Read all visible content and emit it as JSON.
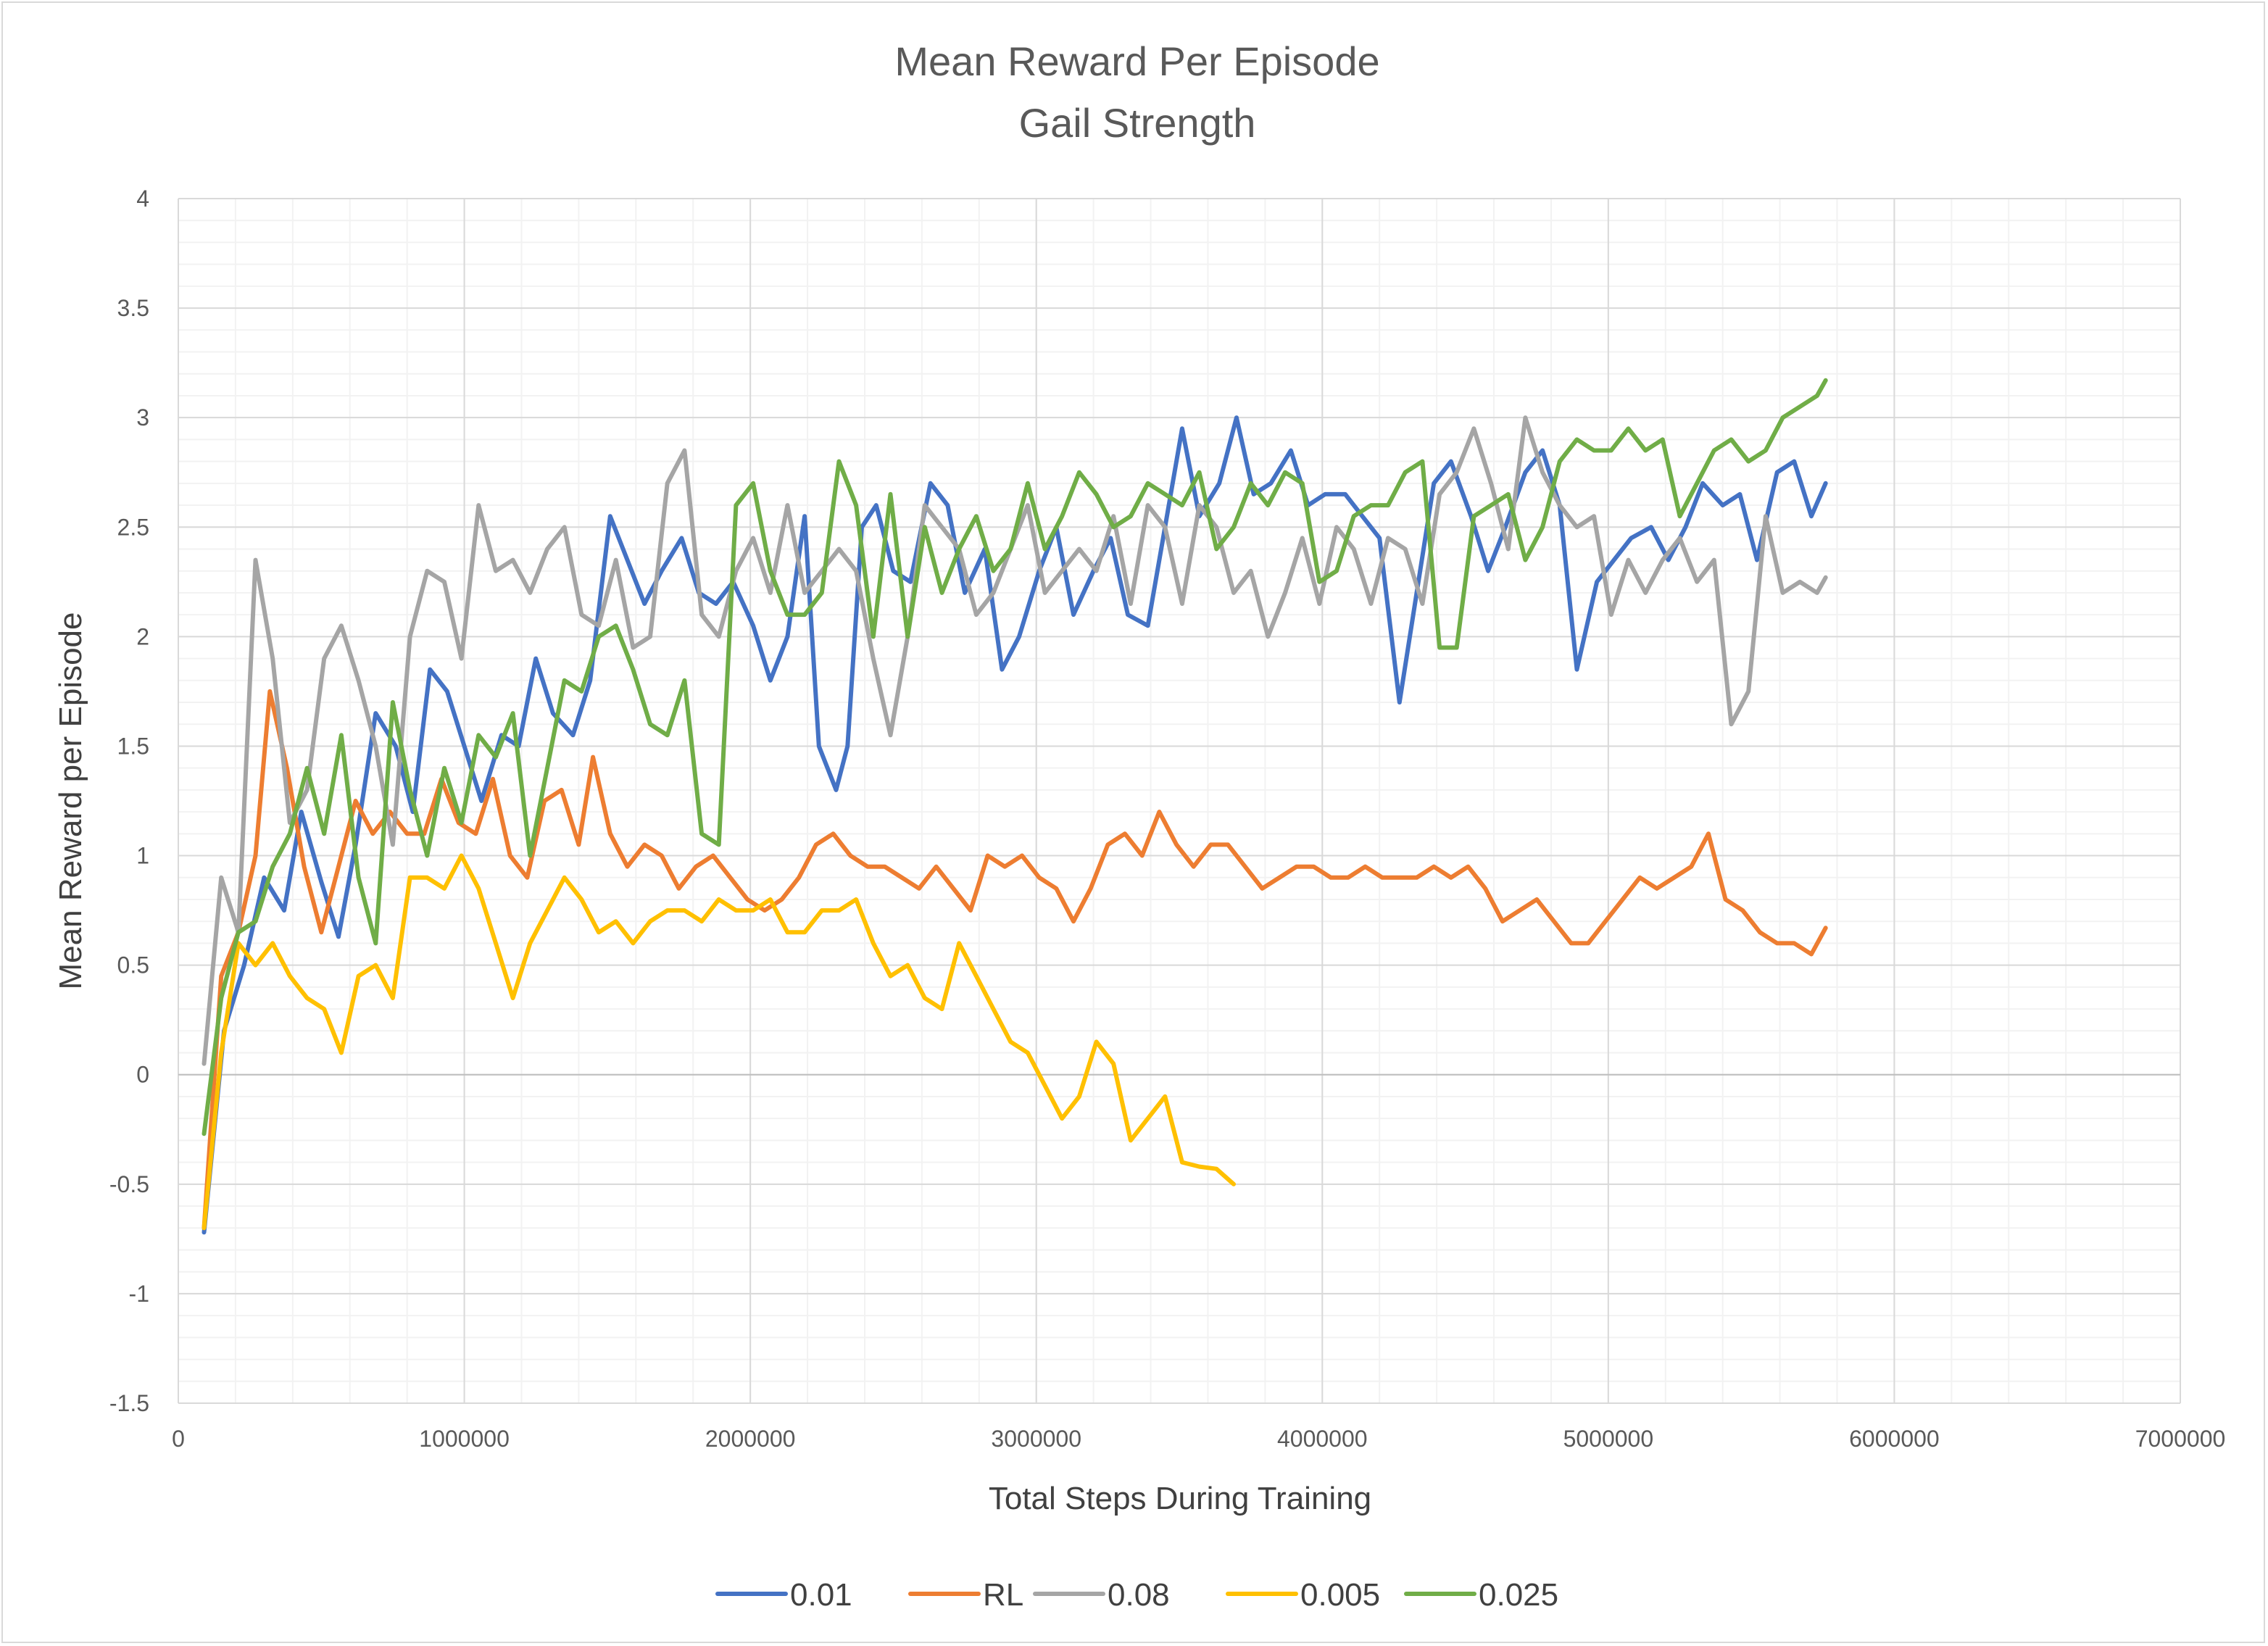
{
  "chart_data": {
    "type": "line",
    "title": "Mean Reward Per Episode",
    "subtitle": "Gail Strength",
    "xlabel": "Total Steps During Training",
    "ylabel": "Mean Reward per Episode",
    "xlim": [
      0,
      7000000
    ],
    "ylim": [
      -1.5,
      4
    ],
    "x_ticks": [
      "0",
      "1000000",
      "2000000",
      "3000000",
      "4000000",
      "5000000",
      "6000000",
      "7000000"
    ],
    "y_ticks": [
      "4",
      "3.5",
      "3",
      "2.5",
      "2",
      "1.5",
      "1",
      "0.5",
      "0",
      "-0.5",
      "-1",
      "-1.5"
    ],
    "grid": true,
    "legend_position": "bottom",
    "series": [
      {
        "name": "0.01",
        "color": "#4472c4",
        "x": [
          90000,
          160000,
          230000,
          300000,
          370000,
          430000,
          500000,
          560000,
          620000,
          690000,
          760000,
          820000,
          880000,
          940000,
          1000000,
          1060000,
          1130000,
          1190000,
          1250000,
          1310000,
          1380000,
          1440000,
          1510000,
          1570000,
          1630000,
          1690000,
          1760000,
          1820000,
          1880000,
          1940000,
          2010000,
          2070000,
          2130000,
          2190000,
          2240000,
          2300000,
          2340000,
          2390000,
          2440000,
          2500000,
          2560000,
          2630000,
          2690000,
          2750000,
          2820000,
          2880000,
          2940000,
          3010000,
          3070000,
          3130000,
          3200000,
          3260000,
          3320000,
          3390000,
          3450000,
          3510000,
          3570000,
          3640000,
          3700000,
          3760000,
          3820000,
          3890000,
          3950000,
          4010000,
          4080000,
          4140000,
          4200000,
          4270000,
          4330000,
          4390000,
          4450000,
          4520000,
          4580000,
          4640000,
          4710000,
          4770000,
          4830000,
          4890000,
          4960000,
          5020000,
          5080000,
          5150000,
          5210000,
          5270000,
          5330000,
          5400000,
          5460000,
          5520000,
          5590000,
          5650000,
          5710000,
          5760000
        ],
        "values": [
          -0.72,
          0.2,
          0.5,
          0.9,
          0.75,
          1.2,
          0.88,
          0.63,
          1.05,
          1.65,
          1.5,
          1.2,
          1.85,
          1.75,
          1.5,
          1.25,
          1.55,
          1.5,
          1.9,
          1.65,
          1.55,
          1.8,
          2.55,
          2.35,
          2.15,
          2.3,
          2.45,
          2.2,
          2.15,
          2.25,
          2.05,
          1.8,
          2.0,
          2.55,
          1.5,
          1.3,
          1.5,
          2.5,
          2.6,
          2.3,
          2.25,
          2.7,
          2.6,
          2.2,
          2.4,
          1.85,
          2.0,
          2.3,
          2.5,
          2.1,
          2.3,
          2.45,
          2.1,
          2.05,
          2.5,
          2.95,
          2.55,
          2.7,
          3.0,
          2.65,
          2.7,
          2.85,
          2.6,
          2.65,
          2.65,
          2.55,
          2.45,
          1.7,
          2.2,
          2.7,
          2.8,
          2.55,
          2.3,
          2.5,
          2.75,
          2.85,
          2.6,
          1.85,
          2.25,
          2.35,
          2.45,
          2.5,
          2.35,
          2.5,
          2.7,
          2.6,
          2.65,
          2.35,
          2.75,
          2.8,
          2.55,
          2.7
        ]
      },
      {
        "name": "RL",
        "color": "#ed7d31",
        "x": [
          90000,
          150000,
          210000,
          270000,
          320000,
          380000,
          440000,
          500000,
          560000,
          620000,
          680000,
          740000,
          800000,
          860000,
          920000,
          980000,
          1040000,
          1100000,
          1160000,
          1220000,
          1280000,
          1340000,
          1400000,
          1450000,
          1510000,
          1570000,
          1630000,
          1690000,
          1750000,
          1810000,
          1870000,
          1930000,
          1990000,
          2050000,
          2110000,
          2170000,
          2230000,
          2290000,
          2350000,
          2410000,
          2470000,
          2530000,
          2590000,
          2650000,
          2710000,
          2770000,
          2830000,
          2890000,
          2950000,
          3010000,
          3070000,
          3130000,
          3190000,
          3250000,
          3310000,
          3370000,
          3430000,
          3490000,
          3550000,
          3610000,
          3670000,
          3730000,
          3790000,
          3850000,
          3910000,
          3970000,
          4030000,
          4090000,
          4150000,
          4210000,
          4270000,
          4330000,
          4390000,
          4450000,
          4510000,
          4570000,
          4630000,
          4690000,
          4750000,
          4810000,
          4870000,
          4930000,
          4990000,
          5050000,
          5110000,
          5170000,
          5230000,
          5290000,
          5350000,
          5410000,
          5470000,
          5530000,
          5590000,
          5650000,
          5710000,
          5760000
        ],
        "values": [
          -0.7,
          0.45,
          0.65,
          1.0,
          1.75,
          1.4,
          0.95,
          0.65,
          0.95,
          1.25,
          1.1,
          1.2,
          1.1,
          1.1,
          1.35,
          1.15,
          1.1,
          1.35,
          1.0,
          0.9,
          1.25,
          1.3,
          1.05,
          1.45,
          1.1,
          0.95,
          1.05,
          1.0,
          0.85,
          0.95,
          1.0,
          0.9,
          0.8,
          0.75,
          0.8,
          0.9,
          1.05,
          1.1,
          1.0,
          0.95,
          0.95,
          0.9,
          0.85,
          0.95,
          0.85,
          0.75,
          1.0,
          0.95,
          1.0,
          0.9,
          0.85,
          0.7,
          0.85,
          1.05,
          1.1,
          1.0,
          1.2,
          1.05,
          0.95,
          1.05,
          1.05,
          0.95,
          0.85,
          0.9,
          0.95,
          0.95,
          0.9,
          0.9,
          0.95,
          0.9,
          0.9,
          0.9,
          0.95,
          0.9,
          0.95,
          0.85,
          0.7,
          0.75,
          0.8,
          0.7,
          0.6,
          0.6,
          0.7,
          0.8,
          0.9,
          0.85,
          0.9,
          0.95,
          1.1,
          0.8,
          0.75,
          0.65,
          0.6,
          0.6,
          0.55,
          0.67
        ]
      },
      {
        "name": "0.08",
        "color": "#a5a5a5",
        "x": [
          90000,
          150000,
          210000,
          270000,
          330000,
          390000,
          450000,
          510000,
          570000,
          630000,
          690000,
          750000,
          810000,
          870000,
          930000,
          990000,
          1050000,
          1110000,
          1170000,
          1230000,
          1290000,
          1350000,
          1410000,
          1470000,
          1530000,
          1590000,
          1650000,
          1710000,
          1770000,
          1830000,
          1890000,
          1950000,
          2010000,
          2070000,
          2130000,
          2190000,
          2250000,
          2310000,
          2370000,
          2430000,
          2490000,
          2550000,
          2610000,
          2670000,
          2730000,
          2790000,
          2850000,
          2910000,
          2970000,
          3030000,
          3090000,
          3150000,
          3210000,
          3270000,
          3330000,
          3390000,
          3450000,
          3510000,
          3570000,
          3630000,
          3690000,
          3750000,
          3810000,
          3870000,
          3930000,
          3990000,
          4050000,
          4110000,
          4170000,
          4230000,
          4290000,
          4350000,
          4410000,
          4470000,
          4530000,
          4590000,
          4650000,
          4710000,
          4770000,
          4830000,
          4890000,
          4950000,
          5010000,
          5070000,
          5130000,
          5190000,
          5250000,
          5310000,
          5370000,
          5430000,
          5490000,
          5550000,
          5610000,
          5670000,
          5730000,
          5760000
        ],
        "values": [
          0.05,
          0.9,
          0.65,
          2.35,
          1.9,
          1.15,
          1.3,
          1.9,
          2.05,
          1.8,
          1.5,
          1.05,
          2.0,
          2.3,
          2.25,
          1.9,
          2.6,
          2.3,
          2.35,
          2.2,
          2.4,
          2.5,
          2.1,
          2.05,
          2.35,
          1.95,
          2.0,
          2.7,
          2.85,
          2.1,
          2.0,
          2.3,
          2.45,
          2.2,
          2.6,
          2.2,
          2.3,
          2.4,
          2.3,
          1.9,
          1.55,
          2.0,
          2.6,
          2.5,
          2.4,
          2.1,
          2.2,
          2.4,
          2.6,
          2.2,
          2.3,
          2.4,
          2.3,
          2.55,
          2.15,
          2.6,
          2.5,
          2.15,
          2.6,
          2.5,
          2.2,
          2.3,
          2.0,
          2.2,
          2.45,
          2.15,
          2.5,
          2.4,
          2.15,
          2.45,
          2.4,
          2.15,
          2.65,
          2.75,
          2.95,
          2.7,
          2.4,
          3.0,
          2.75,
          2.6,
          2.5,
          2.55,
          2.1,
          2.35,
          2.2,
          2.35,
          2.45,
          2.25,
          2.35,
          1.6,
          1.75,
          2.55,
          2.2,
          2.25,
          2.2,
          2.27
        ]
      },
      {
        "name": "0.005",
        "color": "#ffc000",
        "x": [
          90000,
          150000,
          210000,
          270000,
          330000,
          390000,
          450000,
          510000,
          570000,
          630000,
          690000,
          750000,
          810000,
          870000,
          930000,
          990000,
          1050000,
          1110000,
          1170000,
          1230000,
          1290000,
          1350000,
          1410000,
          1470000,
          1530000,
          1590000,
          1650000,
          1710000,
          1770000,
          1830000,
          1890000,
          1950000,
          2010000,
          2070000,
          2130000,
          2190000,
          2250000,
          2310000,
          2370000,
          2430000,
          2490000,
          2550000,
          2610000,
          2670000,
          2730000,
          2790000,
          2850000,
          2910000,
          2970000,
          3030000,
          3090000,
          3150000,
          3210000,
          3270000,
          3330000,
          3390000,
          3450000,
          3510000,
          3570000,
          3630000,
          3690000
        ],
        "values": [
          -0.7,
          0.1,
          0.6,
          0.5,
          0.6,
          0.45,
          0.35,
          0.3,
          0.1,
          0.45,
          0.5,
          0.35,
          0.9,
          0.9,
          0.85,
          1.0,
          0.85,
          0.6,
          0.35,
          0.6,
          0.75,
          0.9,
          0.8,
          0.65,
          0.7,
          0.6,
          0.7,
          0.75,
          0.75,
          0.7,
          0.8,
          0.75,
          0.75,
          0.8,
          0.65,
          0.65,
          0.75,
          0.75,
          0.8,
          0.6,
          0.45,
          0.5,
          0.35,
          0.3,
          0.6,
          0.45,
          0.3,
          0.15,
          0.1,
          -0.05,
          -0.2,
          -0.1,
          0.15,
          0.05,
          -0.3,
          -0.2,
          -0.1,
          -0.4,
          -0.42,
          -0.43,
          -0.5
        ]
      },
      {
        "name": "0.025",
        "color": "#70ad47",
        "x": [
          90000,
          150000,
          210000,
          270000,
          330000,
          390000,
          450000,
          510000,
          570000,
          630000,
          690000,
          750000,
          810000,
          870000,
          930000,
          990000,
          1050000,
          1110000,
          1170000,
          1230000,
          1290000,
          1350000,
          1410000,
          1470000,
          1530000,
          1590000,
          1650000,
          1710000,
          1770000,
          1830000,
          1890000,
          1950000,
          2010000,
          2070000,
          2130000,
          2190000,
          2250000,
          2310000,
          2370000,
          2430000,
          2490000,
          2550000,
          2610000,
          2670000,
          2730000,
          2790000,
          2850000,
          2910000,
          2970000,
          3030000,
          3090000,
          3150000,
          3210000,
          3270000,
          3330000,
          3390000,
          3450000,
          3510000,
          3570000,
          3630000,
          3690000,
          3750000,
          3810000,
          3870000,
          3930000,
          3990000,
          4050000,
          4110000,
          4170000,
          4230000,
          4290000,
          4350000,
          4410000,
          4470000,
          4530000,
          4590000,
          4650000,
          4710000,
          4770000,
          4830000,
          4890000,
          4950000,
          5010000,
          5070000,
          5130000,
          5190000,
          5250000,
          5310000,
          5370000,
          5430000,
          5490000,
          5550000,
          5610000,
          5670000,
          5730000,
          5760000
        ],
        "values": [
          -0.27,
          0.35,
          0.65,
          0.7,
          0.95,
          1.1,
          1.4,
          1.1,
          1.55,
          0.9,
          0.6,
          1.7,
          1.3,
          1.0,
          1.4,
          1.15,
          1.55,
          1.45,
          1.65,
          1.0,
          1.4,
          1.8,
          1.75,
          2.0,
          2.05,
          1.85,
          1.6,
          1.55,
          1.8,
          1.1,
          1.05,
          2.6,
          2.7,
          2.3,
          2.1,
          2.1,
          2.2,
          2.8,
          2.6,
          2.0,
          2.65,
          2.0,
          2.5,
          2.2,
          2.4,
          2.55,
          2.3,
          2.4,
          2.7,
          2.4,
          2.55,
          2.75,
          2.65,
          2.5,
          2.55,
          2.7,
          2.65,
          2.6,
          2.75,
          2.4,
          2.5,
          2.7,
          2.6,
          2.75,
          2.7,
          2.25,
          2.3,
          2.55,
          2.6,
          2.6,
          2.75,
          2.8,
          1.95,
          1.95,
          2.55,
          2.6,
          2.65,
          2.35,
          2.5,
          2.8,
          2.9,
          2.85,
          2.85,
          2.95,
          2.85,
          2.9,
          2.55,
          2.7,
          2.85,
          2.9,
          2.8,
          2.85,
          3.0,
          3.05,
          3.1,
          3.17
        ]
      }
    ]
  }
}
